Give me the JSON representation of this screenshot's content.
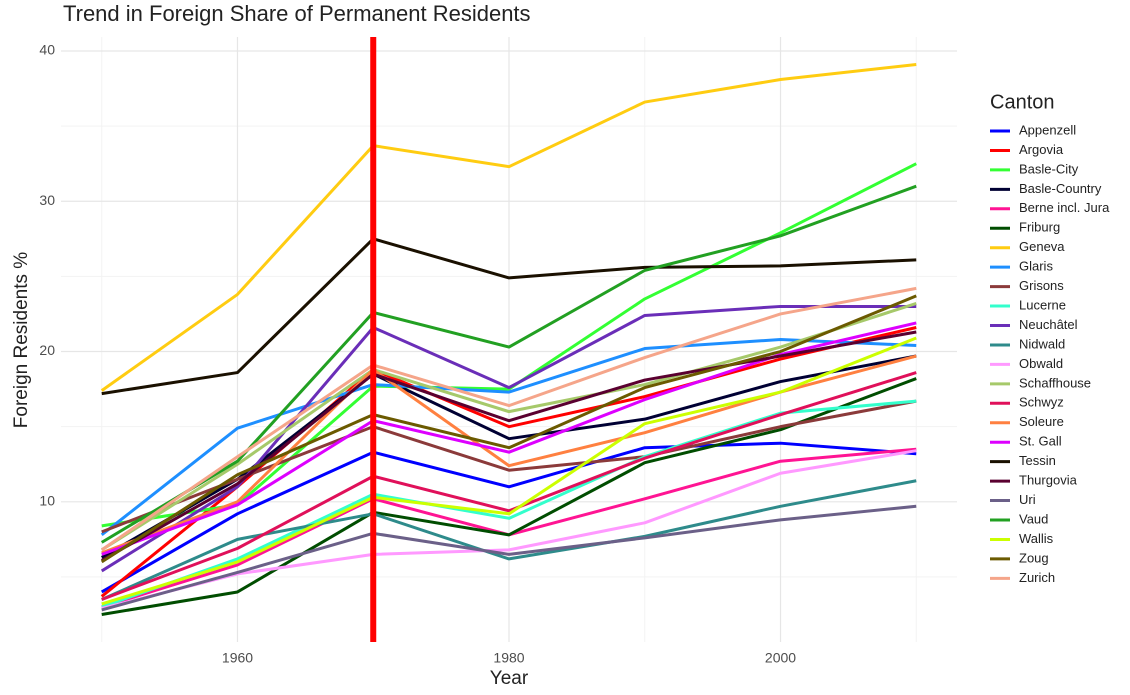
{
  "chart_data": {
    "type": "line",
    "title": "Trend in Foreign Share of Permanent Residents",
    "x_label": "Year",
    "y_label": "Foreign Residents %",
    "legend_title": "Canton",
    "legend": "right",
    "x": [
      1950,
      1960,
      1970,
      1980,
      1990,
      2000,
      2010
    ],
    "xlim": [
      1947,
      2013
    ],
    "xticks": [
      1960,
      1980,
      2000
    ],
    "ylim": [
      0.67,
      40.93
    ],
    "yticks": [
      10,
      20,
      30,
      40
    ],
    "grid": true,
    "vline": 1970,
    "vline_color": "#ff0000",
    "series": [
      {
        "name": "Appenzell",
        "color": "#0000ff",
        "values": [
          4.0,
          9.2,
          13.3,
          11.0,
          13.6,
          13.9,
          13.2
        ]
      },
      {
        "name": "Argovia",
        "color": "#ff0000",
        "values": [
          3.7,
          11.0,
          18.8,
          15.0,
          17.0,
          19.5,
          21.6
        ]
      },
      {
        "name": "Basle-City",
        "color": "#33ff33",
        "values": [
          8.4,
          9.8,
          17.7,
          17.5,
          23.5,
          27.9,
          32.5
        ]
      },
      {
        "name": "Basle-Country",
        "color": "#000033",
        "values": [
          6.3,
          11.5,
          18.5,
          14.2,
          15.5,
          18.0,
          19.7
        ]
      },
      {
        "name": "Berne incl. Jura",
        "color": "#ff1493",
        "values": [
          3.0,
          5.8,
          10.2,
          7.8,
          10.2,
          12.7,
          13.5
        ]
      },
      {
        "name": "Friburg",
        "color": "#004d00",
        "values": [
          2.5,
          4.0,
          9.3,
          7.8,
          12.6,
          14.8,
          18.2
        ]
      },
      {
        "name": "Geneva",
        "color": "#ffcc11",
        "values": [
          17.4,
          23.8,
          33.7,
          32.3,
          36.6,
          38.1,
          39.1
        ]
      },
      {
        "name": "Glaris",
        "color": "#1e8fff",
        "values": [
          7.8,
          14.9,
          17.8,
          17.3,
          20.2,
          20.8,
          20.4
        ]
      },
      {
        "name": "Grisons",
        "color": "#8b3a3a",
        "values": [
          8.0,
          11.5,
          15.0,
          12.1,
          13.0,
          15.0,
          16.7
        ]
      },
      {
        "name": "Lucerne",
        "color": "#33ffcc",
        "values": [
          3.0,
          6.2,
          10.5,
          8.9,
          13.0,
          15.9,
          16.7
        ]
      },
      {
        "name": "Neuchâtel",
        "color": "#6a2eb8",
        "values": [
          5.4,
          11.0,
          21.6,
          17.6,
          22.4,
          23.0,
          23.0
        ]
      },
      {
        "name": "Nidwald",
        "color": "#2e8b8b",
        "values": [
          3.5,
          7.5,
          9.2,
          6.2,
          7.7,
          9.7,
          11.4
        ]
      },
      {
        "name": "Obwald",
        "color": "#ff99ff",
        "values": [
          2.9,
          5.2,
          6.5,
          6.8,
          8.6,
          11.9,
          13.4
        ]
      },
      {
        "name": "Schaffhouse",
        "color": "#a6c96a",
        "values": [
          6.8,
          12.5,
          18.8,
          16.0,
          17.8,
          20.3,
          23.2
        ]
      },
      {
        "name": "Schwyz",
        "color": "#e0105a",
        "values": [
          3.5,
          6.9,
          11.7,
          9.4,
          12.9,
          15.8,
          18.6
        ]
      },
      {
        "name": "Soleure",
        "color": "#ff8040",
        "values": [
          6.6,
          10.0,
          18.8,
          12.4,
          14.6,
          17.3,
          19.7
        ]
      },
      {
        "name": "St. Gall",
        "color": "#dd00ff",
        "values": [
          6.5,
          9.8,
          15.4,
          13.3,
          16.8,
          19.8,
          21.9
        ]
      },
      {
        "name": "Tessin",
        "color": "#1a1000",
        "values": [
          17.2,
          18.6,
          27.5,
          24.9,
          25.6,
          25.7,
          26.1
        ]
      },
      {
        "name": "Thurgovia",
        "color": "#5a0030",
        "values": [
          6.1,
          11.2,
          18.5,
          15.4,
          18.1,
          19.7,
          21.3
        ]
      },
      {
        "name": "Uri",
        "color": "#6b6088",
        "values": [
          2.8,
          5.3,
          7.9,
          6.5,
          7.6,
          8.8,
          9.7
        ]
      },
      {
        "name": "Vaud",
        "color": "#22a022",
        "values": [
          7.3,
          12.7,
          22.6,
          20.3,
          25.4,
          27.7,
          31.0
        ]
      },
      {
        "name": "Wallis",
        "color": "#ccff00",
        "values": [
          3.2,
          6.0,
          10.3,
          9.2,
          15.2,
          17.3,
          20.9
        ]
      },
      {
        "name": "Zoug",
        "color": "#6b5a00",
        "values": [
          6.0,
          11.8,
          15.8,
          13.6,
          17.6,
          20.0,
          23.7
        ]
      },
      {
        "name": "Zurich",
        "color": "#f5a58a",
        "values": [
          6.8,
          13.0,
          19.1,
          16.4,
          19.6,
          22.5,
          24.2
        ]
      }
    ]
  }
}
